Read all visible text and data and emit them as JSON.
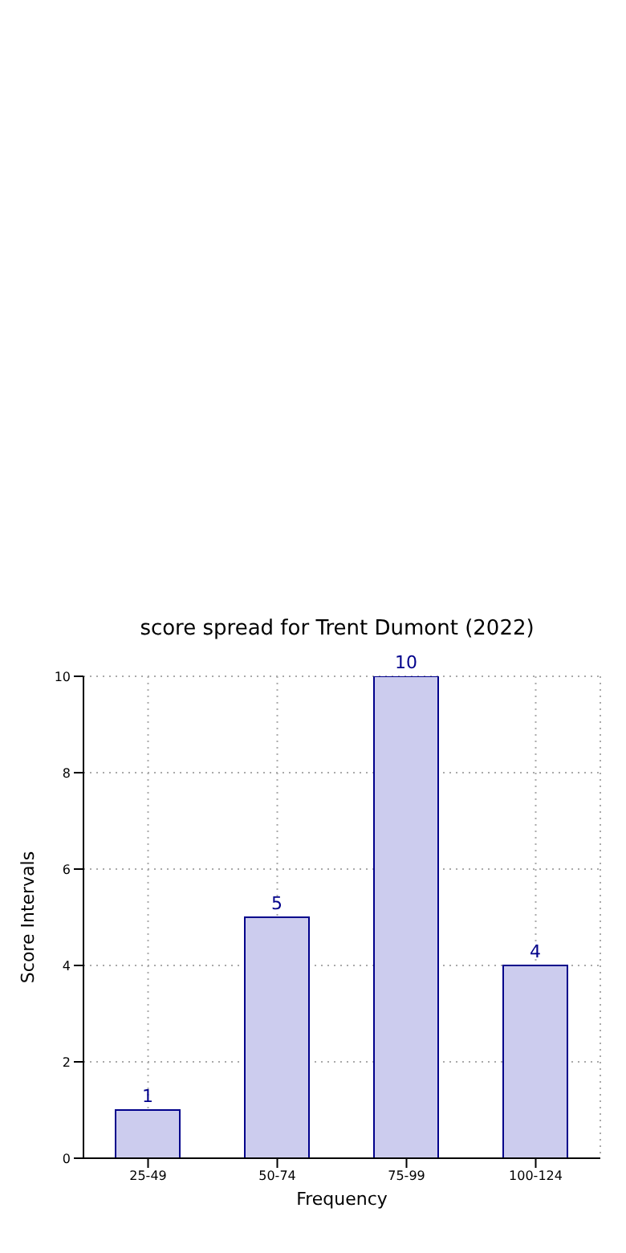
{
  "chart_data": {
    "type": "bar",
    "title": "score spread for Trent Dumont (2022)",
    "xlabel": "Frequency",
    "ylabel": "Score Intervals",
    "categories": [
      "25-49",
      "50-74",
      "75-99",
      "100-124"
    ],
    "values": [
      1,
      5,
      10,
      4
    ],
    "color": "#ccccee",
    "ylim": [
      0,
      10
    ],
    "yticks": [
      0,
      2,
      4,
      6,
      8,
      10
    ],
    "grid": true,
    "data_labels": true
  }
}
